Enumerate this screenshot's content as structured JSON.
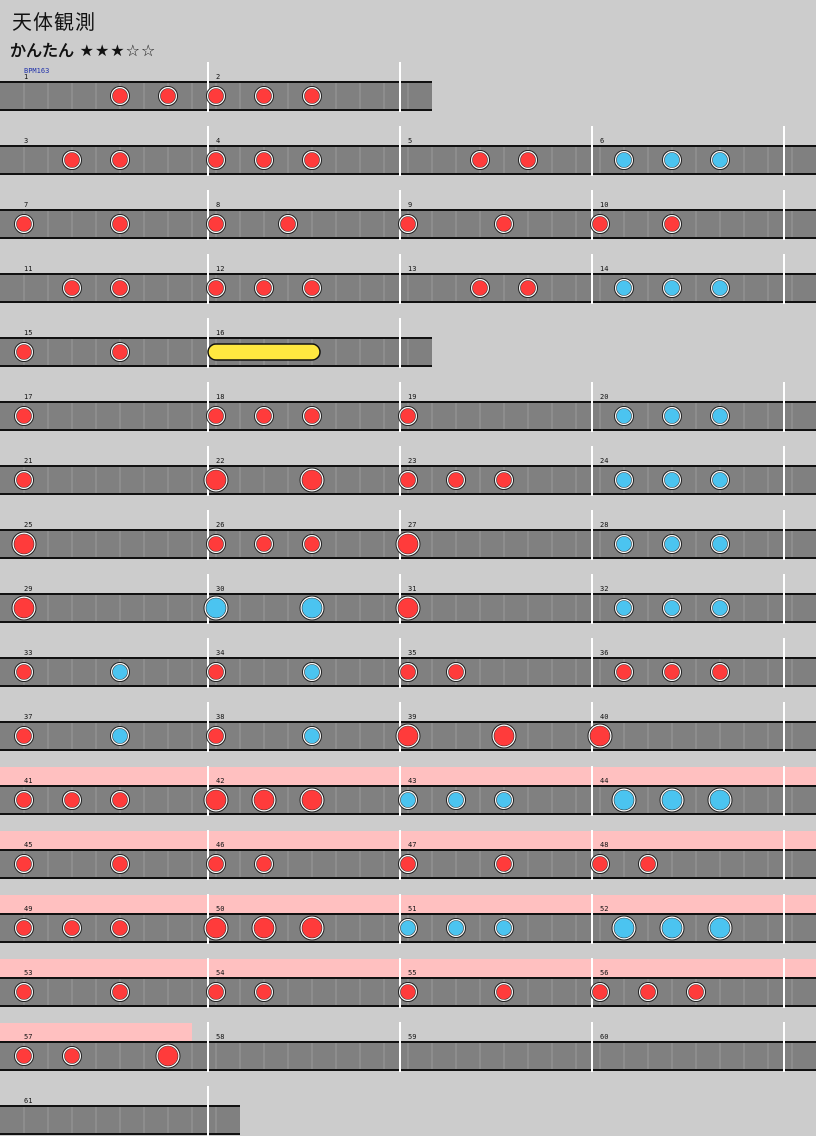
{
  "title": "天体観測",
  "difficulty": {
    "label": "かんたん",
    "stars": "★★★☆☆"
  },
  "bpm_label": "BPM163",
  "colors": {
    "background": "#cccccc",
    "lane": "#808080",
    "gogo": "#ffc0c0",
    "don": "#ff3b3b",
    "ka": "#4bc4f0",
    "drumroll": "#ffe840",
    "barline": "#ffffff"
  },
  "rows": [
    {
      "measures": 2,
      "gogo": [],
      "notes": [
        [
          4,
          "d"
        ],
        [
          6,
          "d"
        ],
        [
          8,
          "d"
        ],
        [
          10,
          "d"
        ],
        [
          12,
          "d"
        ]
      ]
    },
    {
      "measures": 4,
      "gogo": [],
      "notes": [
        [
          2,
          "d"
        ],
        [
          4,
          "d"
        ],
        [
          8,
          "d"
        ],
        [
          10,
          "d"
        ],
        [
          12,
          "d"
        ],
        [
          19,
          "d"
        ],
        [
          21,
          "d"
        ],
        [
          25,
          "k"
        ],
        [
          27,
          "k"
        ],
        [
          29,
          "k"
        ]
      ]
    },
    {
      "measures": 4,
      "gogo": [],
      "notes": [
        [
          0,
          "d"
        ],
        [
          4,
          "d"
        ],
        [
          8,
          "d"
        ],
        [
          11,
          "d"
        ],
        [
          16,
          "d"
        ],
        [
          20,
          "d"
        ],
        [
          24,
          "d"
        ],
        [
          27,
          "d"
        ]
      ]
    },
    {
      "measures": 4,
      "gogo": [],
      "notes": [
        [
          2,
          "d"
        ],
        [
          4,
          "d"
        ],
        [
          8,
          "d"
        ],
        [
          10,
          "d"
        ],
        [
          12,
          "d"
        ],
        [
          19,
          "d"
        ],
        [
          21,
          "d"
        ],
        [
          25,
          "k"
        ],
        [
          27,
          "k"
        ],
        [
          29,
          "k"
        ]
      ]
    },
    {
      "measures": 2,
      "gogo": [],
      "notes": [
        [
          0,
          "d"
        ],
        [
          4,
          "d"
        ]
      ],
      "rolls": [
        [
          8,
          12
        ]
      ]
    },
    {
      "measures": 4,
      "gogo": [],
      "notes": [
        [
          0,
          "d"
        ],
        [
          8,
          "d"
        ],
        [
          10,
          "d"
        ],
        [
          12,
          "d"
        ],
        [
          16,
          "d"
        ],
        [
          25,
          "k"
        ],
        [
          27,
          "k"
        ],
        [
          29,
          "k"
        ]
      ]
    },
    {
      "measures": 4,
      "gogo": [],
      "notes": [
        [
          0,
          "d"
        ],
        [
          8,
          "D"
        ],
        [
          12,
          "D"
        ],
        [
          16,
          "d"
        ],
        [
          18,
          "d"
        ],
        [
          20,
          "d"
        ],
        [
          25,
          "k"
        ],
        [
          27,
          "k"
        ],
        [
          29,
          "k"
        ]
      ]
    },
    {
      "measures": 4,
      "gogo": [],
      "notes": [
        [
          0,
          "D"
        ],
        [
          8,
          "d"
        ],
        [
          10,
          "d"
        ],
        [
          12,
          "d"
        ],
        [
          16,
          "D"
        ],
        [
          25,
          "k"
        ],
        [
          27,
          "k"
        ],
        [
          29,
          "k"
        ]
      ]
    },
    {
      "measures": 4,
      "gogo": [],
      "notes": [
        [
          0,
          "D"
        ],
        [
          8,
          "K"
        ],
        [
          12,
          "K"
        ],
        [
          16,
          "D"
        ],
        [
          25,
          "k"
        ],
        [
          27,
          "k"
        ],
        [
          29,
          "k"
        ]
      ]
    },
    {
      "measures": 4,
      "gogo": [],
      "notes": [
        [
          0,
          "d"
        ],
        [
          4,
          "k"
        ],
        [
          8,
          "d"
        ],
        [
          12,
          "k"
        ],
        [
          16,
          "d"
        ],
        [
          18,
          "d"
        ],
        [
          25,
          "d"
        ],
        [
          27,
          "d"
        ],
        [
          29,
          "d"
        ]
      ]
    },
    {
      "measures": 4,
      "gogo": [],
      "notes": [
        [
          0,
          "d"
        ],
        [
          4,
          "k"
        ],
        [
          8,
          "d"
        ],
        [
          12,
          "k"
        ],
        [
          16,
          "D"
        ],
        [
          20,
          "D"
        ],
        [
          24,
          "D"
        ]
      ]
    },
    {
      "measures": 4,
      "gogo": [
        0,
        34
      ],
      "notes": [
        [
          0,
          "d"
        ],
        [
          2,
          "d"
        ],
        [
          4,
          "d"
        ],
        [
          8,
          "D"
        ],
        [
          10,
          "D"
        ],
        [
          12,
          "D"
        ],
        [
          16,
          "k"
        ],
        [
          18,
          "k"
        ],
        [
          20,
          "k"
        ],
        [
          25,
          "K"
        ],
        [
          27,
          "K"
        ],
        [
          29,
          "K"
        ]
      ]
    },
    {
      "measures": 4,
      "gogo": [
        0,
        34
      ],
      "notes": [
        [
          0,
          "d"
        ],
        [
          4,
          "d"
        ],
        [
          8,
          "d"
        ],
        [
          10,
          "d"
        ],
        [
          16,
          "d"
        ],
        [
          20,
          "d"
        ],
        [
          24,
          "d"
        ],
        [
          26,
          "d"
        ]
      ]
    },
    {
      "measures": 4,
      "gogo": [
        0,
        34
      ],
      "notes": [
        [
          0,
          "d"
        ],
        [
          2,
          "d"
        ],
        [
          4,
          "d"
        ],
        [
          8,
          "D"
        ],
        [
          10,
          "D"
        ],
        [
          12,
          "D"
        ],
        [
          16,
          "k"
        ],
        [
          18,
          "k"
        ],
        [
          20,
          "k"
        ],
        [
          25,
          "K"
        ],
        [
          27,
          "K"
        ],
        [
          29,
          "K"
        ]
      ]
    },
    {
      "measures": 4,
      "gogo": [
        0,
        34
      ],
      "notes": [
        [
          0,
          "d"
        ],
        [
          4,
          "d"
        ],
        [
          8,
          "d"
        ],
        [
          10,
          "d"
        ],
        [
          16,
          "d"
        ],
        [
          20,
          "d"
        ],
        [
          24,
          "d"
        ],
        [
          26,
          "d"
        ],
        [
          28,
          "d"
        ]
      ]
    },
    {
      "measures": 4,
      "gogo": [
        0,
        8
      ],
      "notes": [
        [
          0,
          "d"
        ],
        [
          2,
          "d"
        ],
        [
          6,
          "D"
        ]
      ]
    },
    {
      "measures": 1,
      "gogo": [],
      "notes": []
    }
  ]
}
